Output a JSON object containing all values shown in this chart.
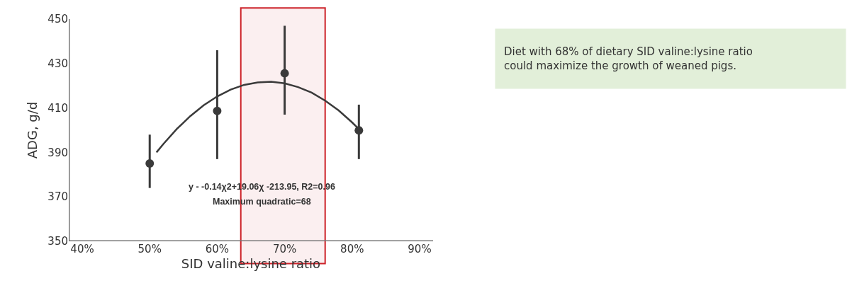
{
  "chart_data": {
    "type": "scatter",
    "xlabel": "SID valine:lysine ratio",
    "ylabel": "ADG, g/d",
    "xlim": [
      38,
      92
    ],
    "xticks": [
      {
        "value": 40,
        "label": "40%"
      },
      {
        "value": 50,
        "label": "50%"
      },
      {
        "value": 60,
        "label": "60%"
      },
      {
        "value": 70,
        "label": "70%"
      },
      {
        "value": 80,
        "label": "80%"
      },
      {
        "value": 90,
        "label": "90%"
      }
    ],
    "ylim": [
      350,
      450
    ],
    "yticks": [
      350,
      370,
      390,
      410,
      430,
      450
    ],
    "grid": false,
    "series": [
      {
        "type": "line",
        "color": "#3a3a3a",
        "marker": "none",
        "line_style": "solid",
        "x": [
          51,
          52,
          54,
          56,
          58,
          60,
          62,
          64,
          66,
          68,
          70,
          72,
          74,
          76,
          78,
          80,
          81
        ],
        "values": [
          390,
          393.7,
          400.5,
          406.3,
          411.2,
          415.2,
          418.3,
          420.4,
          421.5,
          421.8,
          421.1,
          419.4,
          416.9,
          413.3,
          408.9,
          403.5,
          400.5
        ]
      },
      {
        "type": "scatter",
        "color": "#3a3a3a",
        "marker": "circle",
        "x": [
          50,
          60,
          70,
          81
        ],
        "values": [
          385,
          408.7,
          425.6,
          399.9
        ],
        "errors": [
          [
            374,
            398
          ],
          [
            387,
            436
          ],
          [
            407,
            447
          ],
          [
            387,
            411.5
          ]
        ]
      }
    ],
    "bands": [
      {
        "axis": "x",
        "from": 63.5,
        "to": 76,
        "color": "#cc2229"
      }
    ],
    "annotations": [
      "y - -0.14χ2+19.06χ -213.95, R2=0.96",
      "Maximum quadratic=68",
      "Diet with 68% of dietary SID valine:lysine ratio\ncould maximize the growth of weaned pigs."
    ]
  }
}
